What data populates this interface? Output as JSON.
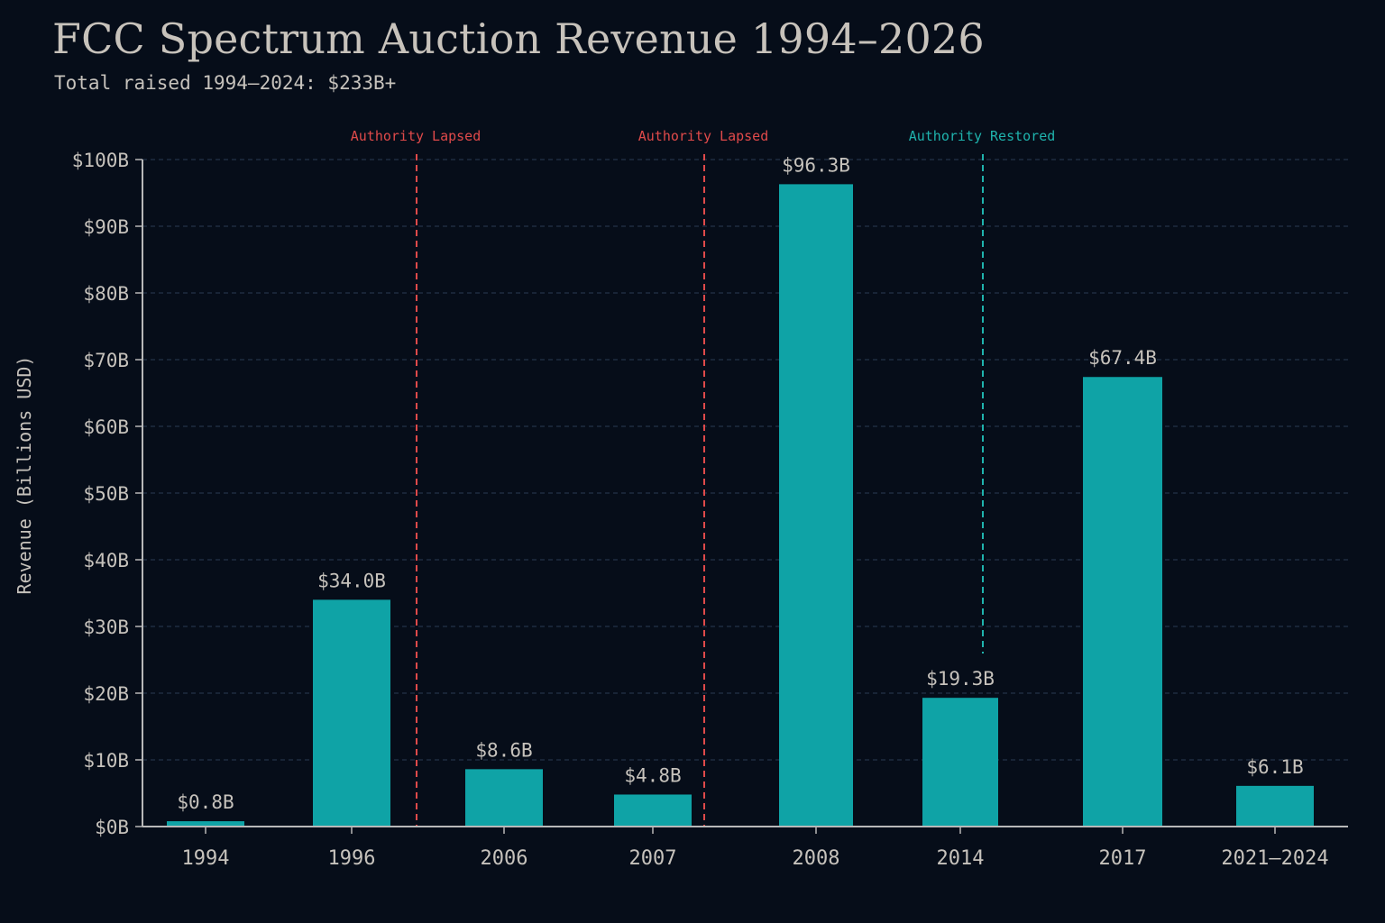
{
  "title": "FCC Spectrum Auction Revenue 1994–2026",
  "subtitle": "Total raised 1994–2024: $233B+",
  "chart_data": {
    "type": "bar",
    "categories": [
      "1994",
      "1996",
      "2006",
      "2007",
      "2008",
      "2014",
      "2017",
      "2021–2024"
    ],
    "values": [
      0.8,
      34.0,
      8.6,
      4.8,
      96.3,
      19.3,
      67.4,
      6.1
    ],
    "value_labels": [
      "$0.8B",
      "$34.0B",
      "$8.6B",
      "$4.8B",
      "$96.3B",
      "$19.3B",
      "$67.4B",
      "$6.1B"
    ],
    "ylabel": "Revenue (Billions USD)",
    "ylim": [
      0,
      100
    ],
    "yticks": [
      0,
      10,
      20,
      30,
      40,
      50,
      60,
      70,
      80,
      90,
      100
    ],
    "ytick_labels": [
      "$0B",
      "$10B",
      "$20B",
      "$30B",
      "$40B",
      "$50B",
      "$60B",
      "$70B",
      "$80B",
      "$90B",
      "$100B"
    ],
    "grid": true,
    "annotations": [
      {
        "text": "Authority Lapsed",
        "between": [
          "1996",
          "2006"
        ],
        "color": "#e04a4a"
      },
      {
        "text": "Authority Lapsed",
        "between": [
          "2007",
          "2008"
        ],
        "color": "#e04a4a"
      },
      {
        "text": "Authority Restored",
        "at": "2014",
        "color": "#1fb3ad"
      }
    ],
    "colors": {
      "bar": "#0fa3a6",
      "background": "#060d19",
      "grid": "#2a3a52",
      "axis": "#b8b8b8",
      "text": "#c6c2bc",
      "lapsed": "#e04a4a",
      "restored": "#1fb3ad"
    }
  }
}
